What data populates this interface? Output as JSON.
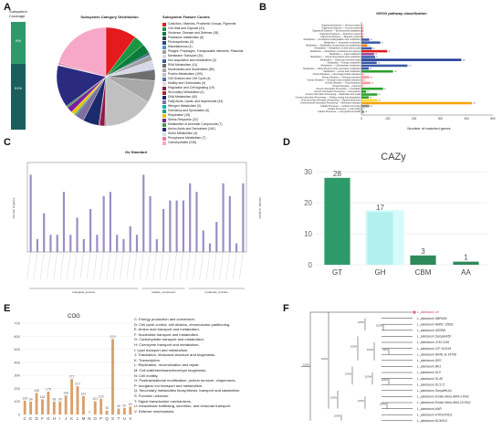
{
  "letters": {
    "a": "A",
    "b": "B",
    "c": "C",
    "d": "D",
    "e": "E",
    "f": "F"
  },
  "palette": [
    "#e41a1c",
    "#1a9641",
    "#0a7d3b",
    "#2c3e50",
    "#1f4e79",
    "#4a90d9",
    "#9e9e9e",
    "#d8d8e8",
    "#3b5ba9",
    "#6e6e6e",
    "#a9a9a9",
    "#c0c0c0",
    "#5b6fb5",
    "#e6d6e6",
    "#8b1a4b",
    "#b22222",
    "#1b2a6b",
    "#7f6f9f",
    "#00b3b3",
    "#16a085",
    "#f2c100",
    "#7a1fa2",
    "#3d9b48",
    "#2a2a80",
    "#c8e6e6",
    "#e87ba8",
    "#f7a8c8"
  ],
  "chart_data": [
    {
      "type": "pie",
      "title": "Subsystem Category Distribution",
      "coverage_title": "Subsystem\nCoverage",
      "coverage_values": [
        "9%",
        "91%"
      ],
      "legend_title": "Subsystem Feature Counts",
      "slices": [
        {
          "label": "Cofactors, Vitamins, Prosthetic Groups, Pigments",
          "value": 118
        },
        {
          "label": "Cell Wall and Capsule (41)",
          "value": 41
        },
        {
          "label": "Virulence, Disease and Defense (38)",
          "value": 38
        },
        {
          "label": "Potassium metabolism (6)",
          "value": 6
        },
        {
          "label": "Photosynthesis (0)",
          "value": 0
        },
        {
          "label": "Miscellaneous (4)",
          "value": 4
        },
        {
          "label": "Phages, Prophages, Transposable elements, Plasmids",
          "value": 20
        },
        {
          "label": "Membrane Transport (34)",
          "value": 34
        },
        {
          "label": "Iron acquisition and metabolism (3)",
          "value": 3
        },
        {
          "label": "RNA Metabolism (41)",
          "value": 41
        },
        {
          "label": "Nucleosides and Nucleotides (85)",
          "value": 85
        },
        {
          "label": "Protein Metabolism (190)",
          "value": 190
        },
        {
          "label": "Cell Division and Cell Cycle (4)",
          "value": 4
        },
        {
          "label": "Motility and Chemotaxis (0)",
          "value": 0
        },
        {
          "label": "Regulation and Cell signaling (19)",
          "value": 19
        },
        {
          "label": "Secondary Metabolism (4)",
          "value": 4
        },
        {
          "label": "DNA Metabolism (60)",
          "value": 60
        },
        {
          "label": "Fatty Acids, Lipids, and Isoprenoids (34)",
          "value": 34
        },
        {
          "label": "Nitrogen Metabolism (0)",
          "value": 0
        },
        {
          "label": "Dormancy and Sporulation (6)",
          "value": 6
        },
        {
          "label": "Respiration (15)",
          "value": 15
        },
        {
          "label": "Stress Response (22)",
          "value": 22
        },
        {
          "label": "Metabolism of Aromatic Compounds (7)",
          "value": 7
        },
        {
          "label": "Amino Acids and Derivatives (161)",
          "value": 161
        },
        {
          "label": "Sulfur Metabolism (4)",
          "value": 4
        },
        {
          "label": "Phosphorus Metabolism (7)",
          "value": 7
        },
        {
          "label": "Carbohydrates (236)",
          "value": 236
        }
      ]
    },
    {
      "type": "bar",
      "orientation": "horizontal",
      "title": "KEGG pathway classification",
      "xlabel": "Number of matched genes",
      "xlim": [
        0,
        500
      ],
      "ticks": [
        "0",
        "100",
        "200",
        "300",
        "400",
        "500"
      ],
      "categories": [
        "Organismal Systems — Nervous system",
        "Organismal Systems — Immune system",
        "Organismal Systems — Environmental adaptation",
        "Organismal Systems — Endocrine system",
        "Organismal Systems — Digestive system",
        "Metabolism — Xenobiotics biodegradation and metabolism",
        "Metabolism — Nucleotide metabolism",
        "Metabolism — Metabolism of terpenoids and polyketides",
        "Metabolism — Metabolism of other amino acids",
        "Metabolism — Metabolism of cofactors and vitamins",
        "Metabolism — Lipid metabolism",
        "Metabolism — Glycan biosynthesis and metabolism",
        "Metabolism — Global and overview maps",
        "Metabolism — Energy metabolism",
        "Metabolism — Carbohydrate metabolism",
        "Metabolism — Biosynthesis of other secondary metabolites",
        "Metabolism — Amino acid metabolism",
        "Human Diseases — Neurodegenerative diseases",
        "Human Diseases — Infectious diseases",
        "Human Diseases — Endocrine and metabolic diseases",
        "Human Diseases — Drug resistance",
        "Human Diseases — Cancers",
        "Genetic Information Processing — Translation",
        "Genetic Information Processing — Transcription",
        "Genetic Information Processing — Replication and repair",
        "Genetic Information Processing — Folding, sorting and degradation",
        "Environmental Information Processing — Signal transduction",
        "Environmental Information Processing — Membrane transport",
        "Cellular Processes — Cellular community",
        "Cellular Processes — Cell motility",
        "Cellular Processes — Cell growth and death"
      ],
      "values": [
        2,
        3,
        4,
        3,
        4,
        30,
        72,
        22,
        40,
        98,
        48,
        52,
        380,
        58,
        175,
        28,
        120,
        6,
        30,
        8,
        34,
        5,
        82,
        18,
        60,
        28,
        62,
        420,
        30,
        4,
        10
      ],
      "groups": [
        "Organismal Systems",
        "Metabolism",
        "Human Diseases",
        "Genetic Information Processing",
        "Environmental Information Processing",
        "Cellular Processes"
      ]
    },
    {
      "type": "bar",
      "title": "Go Standard",
      "groups": [
        "biological_process",
        "cellular_component",
        "molecular_function"
      ],
      "values": [
        18,
        3,
        9,
        4,
        4,
        14,
        4,
        8,
        3,
        10,
        4,
        13,
        14,
        4,
        3,
        6,
        4,
        18,
        13,
        3,
        10,
        12,
        12,
        12,
        16,
        14,
        5,
        2,
        7,
        16,
        13,
        2,
        16
      ],
      "ylabel_left": "Percent of genes",
      "ylabel_right": "Number of genes"
    },
    {
      "type": "bar",
      "title": "CAZy",
      "categories": [
        "GT",
        "GH",
        "CBM",
        "AA"
      ],
      "values": [
        28,
        17,
        3,
        1
      ],
      "ylim": [
        0,
        30
      ],
      "ticks": [
        "0",
        "10",
        "20",
        "30"
      ]
    },
    {
      "type": "bar",
      "title": "COG",
      "categories": [
        "C",
        "E",
        "D",
        "F",
        "G",
        "H",
        "I",
        "J",
        "K",
        "L",
        "M",
        "N",
        "O",
        "P",
        "Q",
        "S",
        "T",
        "U",
        "V"
      ],
      "values": [
        106,
        98,
        165,
        116,
        175,
        98,
        98,
        146,
        272,
        217,
        141,
        0,
        101,
        120,
        30,
        579,
        45,
        50,
        60
      ],
      "ylim": [
        0,
        700
      ],
      "ticks": [
        "0",
        "100",
        "200",
        "300",
        "400",
        "500",
        "600",
        "700"
      ],
      "legend": [
        "C: Energy production and conversion.",
        "D: Cell cycle control, cell division, chromosome partitioning.",
        "E: Amino acid transport and metabolism.",
        "F: Nucleotide transport and metabolism.",
        "G: Carbohydrate transport and metabolism.",
        "H: Coenzyme transport and metabolism.",
        "I: Lipid transport and metabolism.",
        "J: Translation, ribosomal structure and biogenesis.",
        "K: Transcription.",
        "L: Replication, recombination and repair.",
        "M: Cell wall/membrane/envelope biogenesis.",
        "N: Cell motility.",
        "O: Posttranslational modification, protein turnover, chaperones.",
        "P: Inorganic ion transport and metabolism.",
        "Q: Secondary metabolites biosynthesis, transport and catabolism.",
        "S: Function unknown.",
        "T: Signal transduction mechanisms.",
        "U: Intracellular trafficking, secretion, and vesicular transport.",
        "V: Defense mechanisms."
      ]
    },
    {
      "type": "tree",
      "leaves": [
        "L. plantarum 18",
        "L. plantarum SBR409",
        "L. plantarum NBRC 15891",
        "L. plantarum GB3RA",
        "L. plantarum SampleA50",
        "L. plantarum JCM 1149",
        "L. plantarum CIP 103151",
        "L. plantarum NRRL B-14768",
        "L. plantarum DR2",
        "L. plantarum BK1",
        "L. plantarum SL5",
        "L. plantarum SL4E",
        "L. plantarum DC172",
        "L. plantarum SampleKAC",
        "L. plantarum Emilia Neria A8t4-2-RA2",
        "L. plantarum Emilia Neria A8t4-10-RA2",
        "L. plantarum ANR",
        "L. plantarum HTRU2F611",
        "L. plantarum DCM113"
      ],
      "support": [
        "100%",
        "100%",
        "100%",
        "100%",
        "100%",
        "66%",
        "100%",
        "100%",
        "100%",
        "100%",
        "100%",
        "100%",
        "100%",
        "100%",
        "100%"
      ]
    }
  ]
}
